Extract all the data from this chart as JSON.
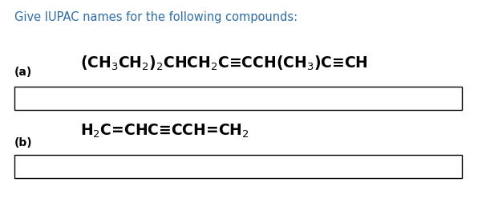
{
  "title": "Give IUPAC names for the following compounds:",
  "title_color": "#2E6DA4",
  "title_fontsize": 10.5,
  "label_a": "(a)",
  "label_b": "(b)",
  "label_fontsize": 10,
  "formula_a": "(CH$_3$CH$_2$)$_2$CHCH$_2$C≡CCH(CH$_3$)C≡CH",
  "formula_b": "H$_2$C=CHC≡CCH=CH$_2$",
  "formula_fontsize": 13.5,
  "background_color": "#ffffff",
  "box_color": "#000000",
  "text_color": "#000000"
}
